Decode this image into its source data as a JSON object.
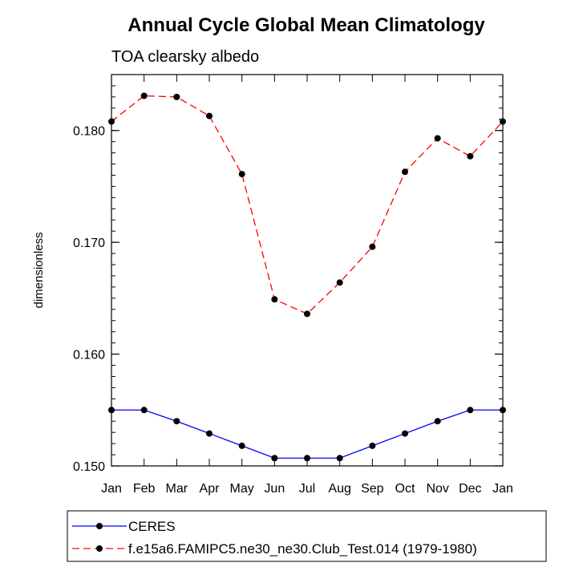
{
  "chart_data": {
    "type": "line",
    "title": "Annual Cycle Global Mean Climatology",
    "subtitle": "TOA clearsky albedo",
    "xlabel": "",
    "ylabel": "dimensionless",
    "categories": [
      "Jan",
      "Feb",
      "Mar",
      "Apr",
      "May",
      "Jun",
      "Jul",
      "Aug",
      "Sep",
      "Oct",
      "Nov",
      "Dec",
      "Jan"
    ],
    "ylim": [
      0.15,
      0.185
    ],
    "yticks": [
      0.15,
      0.16,
      0.17,
      0.18
    ],
    "ytick_labels": [
      "0.150",
      "0.160",
      "0.170",
      "0.180"
    ],
    "grid": false,
    "legend_position": "bottom",
    "series": [
      {
        "name": "CERES",
        "color": "#0000ff",
        "dash": "solid",
        "values": [
          0.155,
          0.155,
          0.154,
          0.1529,
          0.1518,
          0.1507,
          0.1507,
          0.1507,
          0.1518,
          0.1529,
          0.154,
          0.155,
          0.155
        ]
      },
      {
        "name": "f.e15a6.FAMIPC5.ne30_ne30.Club_Test.014 (1979-1980)",
        "color": "#ff0000",
        "dash": "dashed",
        "values": [
          0.1808,
          0.1831,
          0.183,
          0.1813,
          0.1761,
          0.1649,
          0.1636,
          0.1664,
          0.1696,
          0.1763,
          0.1793,
          0.1777,
          0.1808
        ]
      }
    ]
  }
}
